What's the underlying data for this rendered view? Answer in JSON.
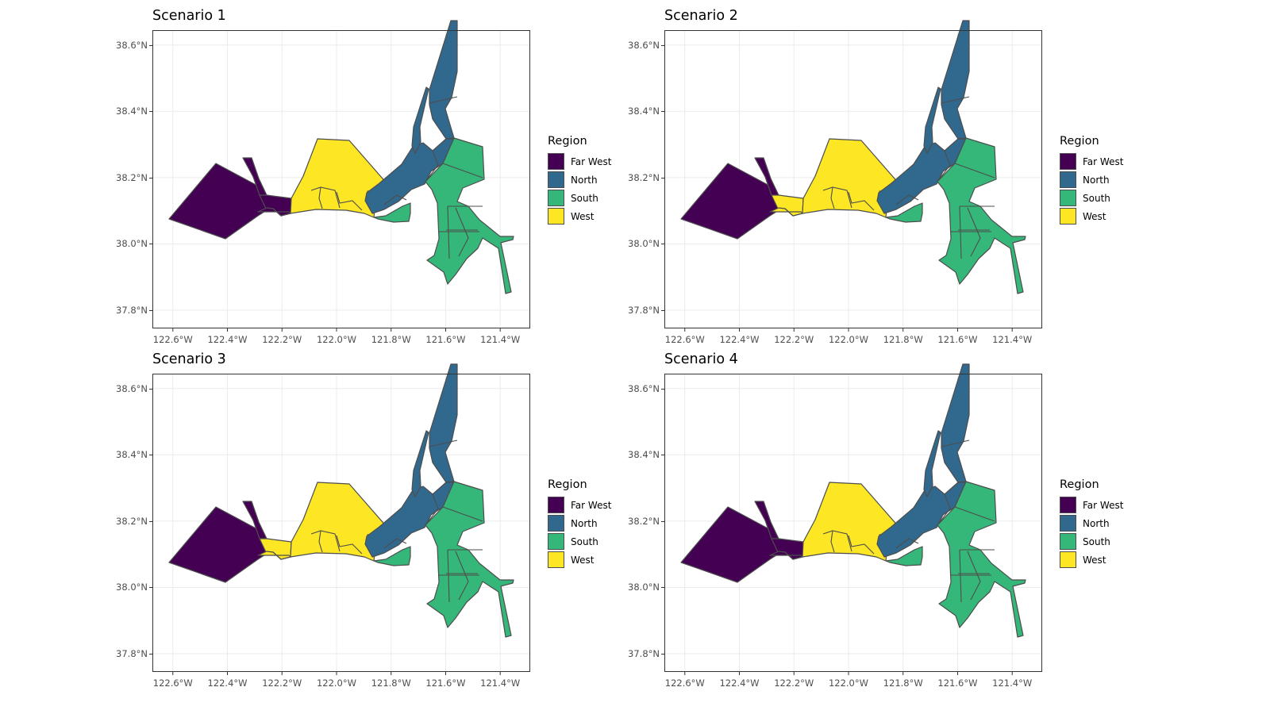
{
  "legend": {
    "title": "Region",
    "items": [
      {
        "key": "far_west",
        "label": "Far West",
        "color": "#440154"
      },
      {
        "key": "north",
        "label": "North",
        "color": "#31688e"
      },
      {
        "key": "south",
        "label": "South",
        "color": "#35b779"
      },
      {
        "key": "west",
        "label": "West",
        "color": "#fde725"
      }
    ]
  },
  "axes": {
    "x_ticks": [
      {
        "value": -122.6,
        "label": "122.6°W"
      },
      {
        "value": -122.4,
        "label": "122.4°W"
      },
      {
        "value": -122.2,
        "label": "122.2°W"
      },
      {
        "value": -122.0,
        "label": "122.0°W"
      },
      {
        "value": -121.8,
        "label": "121.8°W"
      },
      {
        "value": -121.6,
        "label": "121.6°W"
      },
      {
        "value": -121.4,
        "label": "121.4°W"
      }
    ],
    "y_ticks": [
      {
        "value": 38.6,
        "label": "38.6°N"
      },
      {
        "value": 38.4,
        "label": "38.4°N"
      },
      {
        "value": 38.2,
        "label": "38.2°N"
      },
      {
        "value": 38.0,
        "label": "38.0°N"
      },
      {
        "value": 37.8,
        "label": "37.8°N"
      }
    ],
    "xlim": [
      -122.675,
      -121.29
    ],
    "ylim": [
      37.745,
      38.645
    ]
  },
  "panels": [
    {
      "title": "Scenario 1",
      "assignments": {
        "A1": "far_west",
        "A2": "far_west",
        "A3": "far_west",
        "A4": "far_west",
        "A5": "far_west"
      }
    },
    {
      "title": "Scenario 2",
      "assignments": {
        "A1": "far_west",
        "A2": "far_west",
        "A3": "west",
        "A4": "west",
        "A5": "north"
      }
    },
    {
      "title": "Scenario 3",
      "assignments": {
        "A1": "far_west",
        "A2": "far_west",
        "A3": "west",
        "A4": "west",
        "A5": "north"
      }
    },
    {
      "title": "Scenario 4",
      "assignments": {
        "A1": "far_west",
        "A2": "far_west",
        "A3": "far_west",
        "A4": "far_west",
        "A5": "north"
      }
    }
  ]
}
